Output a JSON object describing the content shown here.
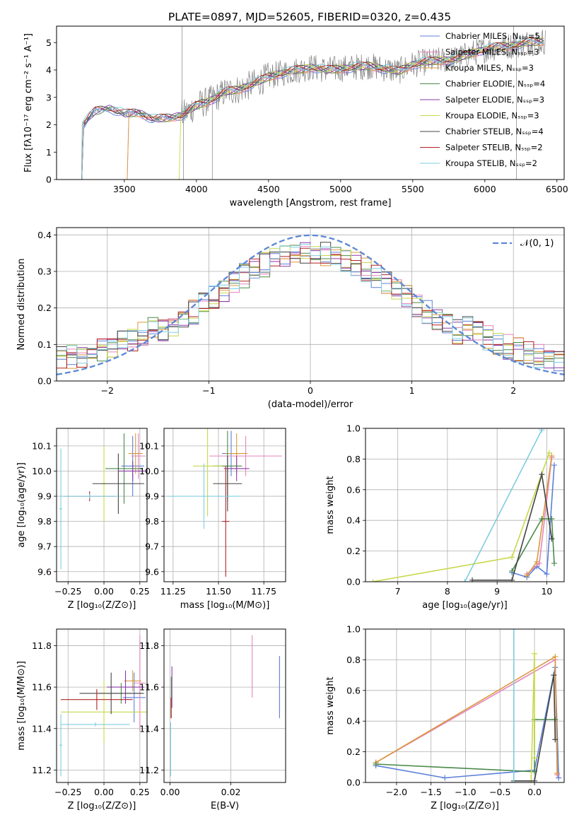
{
  "figure": {
    "title": "PLATE=0897, MJD=52605, FIBERID=0320, z=0.435"
  },
  "colors": {
    "models": [
      "#5b7fd9",
      "#e683bd",
      "#d99a3b",
      "#4a8a4a",
      "#8a3aa8",
      "#c8d84a",
      "#444444",
      "#b22222",
      "#7fcde0"
    ],
    "data": "#808080",
    "model_curve": "#ee7733",
    "gaussian": "#5b88d6",
    "grid": "#b0b0b0"
  },
  "chart_data": [
    {
      "type": "line",
      "name": "spectrum",
      "xlabel": "wavelength [Angstrom, rest frame]",
      "ylabel": "Flux [fλ10⁻¹⁷ erg cm⁻² s⁻¹ A⁻¹]",
      "xlim": [
        3030,
        6550
      ],
      "ylim": [
        0,
        5.6
      ],
      "xticks": [
        3500,
        4000,
        4500,
        5000,
        5500,
        6000,
        6500
      ],
      "yticks": [
        0,
        1,
        2,
        3,
        4,
        5
      ],
      "legend_position": "upper right",
      "legend": [
        "Chabrier MILES, Nₛₛₚ=5",
        "Salpeter MILES, Nₛₛₚ=3",
        "Kroupa MILES, Nₛₛₚ=3",
        "Chabrier ELODIE, Nₛₛₚ=4",
        "Salpeter ELODIE, Nₛₛₚ=3",
        "Kroupa ELODIE, Nₛₛₚ=3",
        "Chabrier STELIB, Nₛₛₚ=4",
        "Salpeter STELIB, Nₛₛₚ=2",
        "Kroupa STELIB, Nₛₛₚ=2"
      ],
      "continuum_x": [
        3200,
        3260,
        3300,
        3400,
        3500,
        3600,
        3700,
        3800,
        3900,
        4000,
        4100,
        4200,
        4300,
        4400,
        4500,
        4600,
        4700,
        4800,
        4900,
        5000,
        5100,
        5200,
        5300,
        5400,
        5500,
        5600,
        5700,
        5800,
        5900,
        6000,
        6100,
        6200,
        6300,
        6400
      ],
      "continuum_y": [
        1.9,
        2.3,
        2.5,
        2.6,
        2.4,
        2.45,
        2.2,
        2.25,
        2.35,
        2.7,
        2.9,
        3.2,
        3.3,
        3.5,
        3.75,
        3.9,
        4.0,
        4.1,
        4.0,
        4.05,
        4.1,
        4.15,
        4.05,
        3.95,
        4.2,
        4.3,
        4.35,
        4.4,
        4.6,
        4.75,
        4.85,
        4.9,
        5.0,
        5.05
      ]
    },
    {
      "type": "line",
      "name": "residuals",
      "xlabel": "(data-model)/error",
      "ylabel": "Normed distribution",
      "xlim": [
        -2.5,
        2.5
      ],
      "ylim": [
        0,
        0.42
      ],
      "xticks": [
        -2,
        -1,
        0,
        1,
        2
      ],
      "yticks": [
        0.0,
        0.1,
        0.2,
        0.3,
        0.4
      ],
      "legend": [
        "𝒩(0, 1)"
      ],
      "legend_position": "upper right"
    },
    {
      "type": "scatter",
      "name": "age-vs-Z",
      "xlabel": "Z [log₁₀(Z/Z⊙)]",
      "ylabel": "age  [log₁₀(age/yr)]",
      "xlim": [
        -0.33,
        0.3
      ],
      "ylim": [
        9.56,
        10.17
      ],
      "xticks": [
        -0.25,
        0.0,
        0.25
      ],
      "yticks": [
        9.6,
        9.7,
        9.8,
        9.9,
        10.0,
        10.1
      ],
      "points": [
        {
          "x": 0.2,
          "y": 10.02,
          "xerr": 0.08,
          "yerr": 0.12,
          "c": 0
        },
        {
          "x": 0.24,
          "y": 10.06,
          "xerr": 0.05,
          "yerr": 0.09,
          "c": 1
        },
        {
          "x": 0.22,
          "y": 10.07,
          "xerr": 0.05,
          "yerr": 0.08,
          "c": 2
        },
        {
          "x": 0.14,
          "y": 10.01,
          "xerr": 0.13,
          "yerr": 0.14,
          "c": 3
        },
        {
          "x": 0.2,
          "y": 10.0,
          "xerr": 0.1,
          "yerr": 0.04,
          "c": 4
        },
        {
          "x": 0.0,
          "y": 9.95,
          "xerr": 0.02,
          "yerr": 0.15,
          "c": 5
        },
        {
          "x": 0.1,
          "y": 9.95,
          "xerr": 0.18,
          "yerr": 0.12,
          "c": 6
        },
        {
          "x": -0.1,
          "y": 9.9,
          "xerr": 0.18,
          "yerr": 0.02,
          "c": 7
        },
        {
          "x": -0.3,
          "y": 9.85,
          "xerr": 0.01,
          "yerr": 0.24,
          "c": 8
        },
        {
          "x": -0.1,
          "y": 9.9,
          "xerr": 0.2,
          "yerr": 0.01,
          "c": 8
        }
      ]
    },
    {
      "type": "scatter",
      "name": "age-vs-mass",
      "xlabel": "mass [log₁₀(M/M⊙)]",
      "ylabel": "",
      "xlim": [
        11.2,
        11.87
      ],
      "ylim": [
        9.56,
        10.17
      ],
      "xticks": [
        11.25,
        11.5,
        11.75
      ],
      "yticks": [
        9.6,
        9.7,
        9.8,
        9.9,
        10.0,
        10.1
      ],
      "points": [
        {
          "x": 11.57,
          "y": 10.07,
          "xerr": 0.05,
          "yerr": 0.09,
          "c": 0
        },
        {
          "x": 11.65,
          "y": 10.06,
          "xerr": 0.2,
          "yerr": 0.08,
          "c": 1
        },
        {
          "x": 11.6,
          "y": 10.07,
          "xerr": 0.06,
          "yerr": 0.08,
          "c": 2
        },
        {
          "x": 11.55,
          "y": 10.02,
          "xerr": 0.08,
          "yerr": 0.14,
          "c": 3
        },
        {
          "x": 11.6,
          "y": 10.01,
          "xerr": 0.07,
          "yerr": 0.05,
          "c": 4
        },
        {
          "x": 11.44,
          "y": 10.02,
          "xerr": 0.08,
          "yerr": 0.2,
          "c": 5
        },
        {
          "x": 11.55,
          "y": 9.95,
          "xerr": 0.08,
          "yerr": 0.11,
          "c": 6
        },
        {
          "x": 11.54,
          "y": 9.8,
          "xerr": 0.02,
          "yerr": 0.22,
          "c": 7
        },
        {
          "x": 11.42,
          "y": 9.9,
          "xerr": 0.2,
          "yerr": 0.13,
          "c": 8
        }
      ]
    },
    {
      "type": "line",
      "name": "mass-weight-vs-age",
      "xlabel": "age  [log₁₀(age/yr)]",
      "ylabel": "mass weight",
      "xlim": [
        6.35,
        10.35
      ],
      "ylim": [
        0,
        1.0
      ],
      "xticks": [
        7,
        8,
        9,
        10
      ],
      "yticks": [
        0.0,
        0.2,
        0.4,
        0.6,
        0.8,
        1.0
      ],
      "series": [
        {
          "c": 0,
          "x": [
            9.3,
            9.6,
            9.8,
            10.0,
            10.15
          ],
          "y": [
            0.06,
            0.03,
            0.1,
            0.05,
            0.76
          ]
        },
        {
          "c": 1,
          "x": [
            9.6,
            9.85,
            10.1
          ],
          "y": [
            0.05,
            0.12,
            0.81
          ]
        },
        {
          "c": 2,
          "x": [
            9.6,
            9.8,
            10.1
          ],
          "y": [
            0.04,
            0.13,
            0.82
          ]
        },
        {
          "c": 3,
          "x": [
            9.3,
            9.9,
            10.1,
            10.15
          ],
          "y": [
            0.07,
            0.41,
            0.41,
            0.12
          ]
        },
        {
          "c": 5,
          "x": [
            6.5,
            9.3,
            10.05
          ],
          "y": [
            0.0,
            0.16,
            0.84
          ]
        },
        {
          "c": 6,
          "x": [
            8.5,
            9.3,
            9.9,
            10.1
          ],
          "y": [
            0.01,
            0.01,
            0.7,
            0.28
          ]
        },
        {
          "c": 8,
          "x": [
            8.35,
            9.9
          ],
          "y": [
            0.0,
            0.99
          ]
        }
      ]
    },
    {
      "type": "scatter",
      "name": "mass-vs-Z",
      "xlabel": "Z [log₁₀(Z/Z⊙)]",
      "ylabel": "mass [log₁₀(M/M⊙)]",
      "xlim": [
        -0.33,
        0.3
      ],
      "ylim": [
        11.14,
        11.88
      ],
      "xticks": [
        -0.25,
        0.0,
        0.25
      ],
      "yticks": [
        11.2,
        11.4,
        11.6,
        11.8
      ],
      "points": [
        {
          "x": 0.21,
          "y": 11.55,
          "xerr": 0.08,
          "yerr": 0.12,
          "c": 0
        },
        {
          "x": 0.25,
          "y": 11.62,
          "xerr": 0.04,
          "yerr": 0.23,
          "c": 1
        },
        {
          "x": 0.2,
          "y": 11.63,
          "xerr": 0.06,
          "yerr": 0.05,
          "c": 2
        },
        {
          "x": 0.12,
          "y": 11.57,
          "xerr": 0.16,
          "yerr": 0.05,
          "c": 3
        },
        {
          "x": 0.15,
          "y": 11.6,
          "xerr": 0.13,
          "yerr": 0.08,
          "c": 4
        },
        {
          "x": 0.0,
          "y": 11.48,
          "xerr": 0.3,
          "yerr": 0.15,
          "c": 5
        },
        {
          "x": 0.05,
          "y": 11.57,
          "xerr": 0.22,
          "yerr": 0.1,
          "c": 6
        },
        {
          "x": -0.05,
          "y": 11.54,
          "xerr": 0.25,
          "yerr": 0.05,
          "c": 7
        },
        {
          "x": -0.3,
          "y": 11.32,
          "xerr": 0.01,
          "yerr": 0.15,
          "c": 8
        },
        {
          "x": -0.06,
          "y": 11.42,
          "xerr": 0.24,
          "yerr": 0.01,
          "c": 8
        }
      ]
    },
    {
      "type": "scatter",
      "name": "mass-vs-ebv",
      "xlabel": "E(B-V)",
      "ylabel": "",
      "xlim": [
        -0.002,
        0.038
      ],
      "ylim": [
        11.14,
        11.88
      ],
      "xticks": [
        0.0,
        0.02
      ],
      "yticks": [
        11.2,
        11.4,
        11.6,
        11.8
      ],
      "points": [
        {
          "x": 0.036,
          "y": 11.6,
          "xerr": 0,
          "yerr": 0.15,
          "c": 0
        },
        {
          "x": 0.027,
          "y": 11.7,
          "xerr": 0,
          "yerr": 0.15,
          "c": 1
        },
        {
          "x": 0.0006,
          "y": 11.6,
          "xerr": 0,
          "yerr": 0.1,
          "c": 4
        },
        {
          "x": 0.0004,
          "y": 11.55,
          "xerr": 0,
          "yerr": 0.1,
          "c": 3
        },
        {
          "x": 0.0003,
          "y": 11.5,
          "xerr": 0,
          "yerr": 0.05,
          "c": 7
        },
        {
          "x": 0.0002,
          "y": 11.3,
          "xerr": 0,
          "yerr": 0.13,
          "c": 8
        }
      ]
    },
    {
      "type": "line",
      "name": "mass-weight-vs-Z",
      "xlabel": "Z [log₁₀(Z/Z⊙)]",
      "ylabel": "mass weight",
      "xlim": [
        -2.45,
        0.43
      ],
      "ylim": [
        0,
        1.0
      ],
      "xticks": [
        -2.0,
        -1.5,
        -1.0,
        -0.5,
        0.0
      ],
      "yticks": [
        0.0,
        0.2,
        0.4,
        0.6,
        0.8,
        1.0
      ],
      "series": [
        {
          "c": 0,
          "x": [
            -2.3,
            -1.3,
            0.0,
            0.3,
            0.35
          ],
          "y": [
            0.11,
            0.03,
            0.08,
            0.75,
            0.03
          ]
        },
        {
          "c": 1,
          "x": [
            -2.3,
            0.3,
            0.33
          ],
          "y": [
            0.13,
            0.8,
            0.05
          ]
        },
        {
          "c": 2,
          "x": [
            -2.3,
            0.3,
            0.33
          ],
          "y": [
            0.13,
            0.82,
            0.06
          ]
        },
        {
          "c": 3,
          "x": [
            -2.3,
            0.0,
            0.0,
            0.3
          ],
          "y": [
            0.12,
            0.07,
            0.41,
            0.41
          ]
        },
        {
          "c": 5,
          "x": [
            0.0,
            0.0,
            -0.05
          ],
          "y": [
            0.16,
            0.84,
            0.0
          ]
        },
        {
          "c": 6,
          "x": [
            -0.3,
            0.0,
            0.28,
            0.3
          ],
          "y": [
            0.01,
            0.01,
            0.7,
            0.28
          ]
        },
        {
          "c": 8,
          "x": [
            -0.3,
            -0.3
          ],
          "y": [
            0.0,
            1.0
          ]
        }
      ]
    }
  ]
}
